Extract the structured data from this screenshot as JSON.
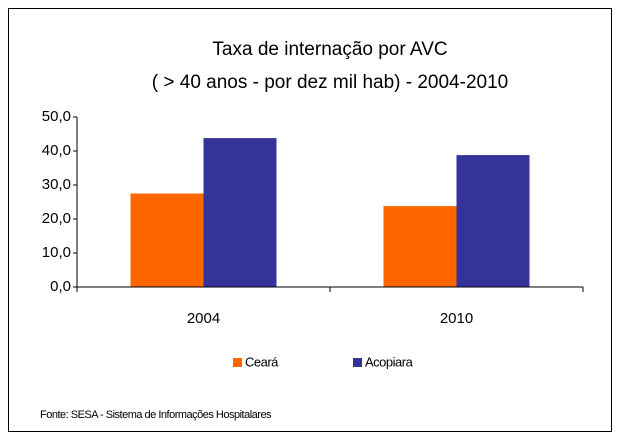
{
  "chart_data": {
    "type": "bar",
    "title": "Taxa de internação por AVC",
    "subtitle": "( > 40 anos - por dez mil hab) - 2004-2010",
    "categories": [
      "2004",
      "2010"
    ],
    "series": [
      {
        "name": "Ceará",
        "color": "#ff6600",
        "values": [
          27.5,
          23.8
        ]
      },
      {
        "name": "Acopiara",
        "color": "#333399",
        "values": [
          43.8,
          38.8
        ]
      }
    ],
    "ylim": [
      0,
      50
    ],
    "yticks": [
      {
        "value": 0,
        "label": "0,0"
      },
      {
        "value": 10,
        "label": "10,0"
      },
      {
        "value": 20,
        "label": "20,0"
      },
      {
        "value": 30,
        "label": "30,0"
      },
      {
        "value": 40,
        "label": "40,0"
      },
      {
        "value": 50,
        "label": "50,0"
      }
    ],
    "grid": false,
    "legend": "bottom",
    "source": "Fonte: SESA - Sistema de Informações Hospitalares"
  }
}
